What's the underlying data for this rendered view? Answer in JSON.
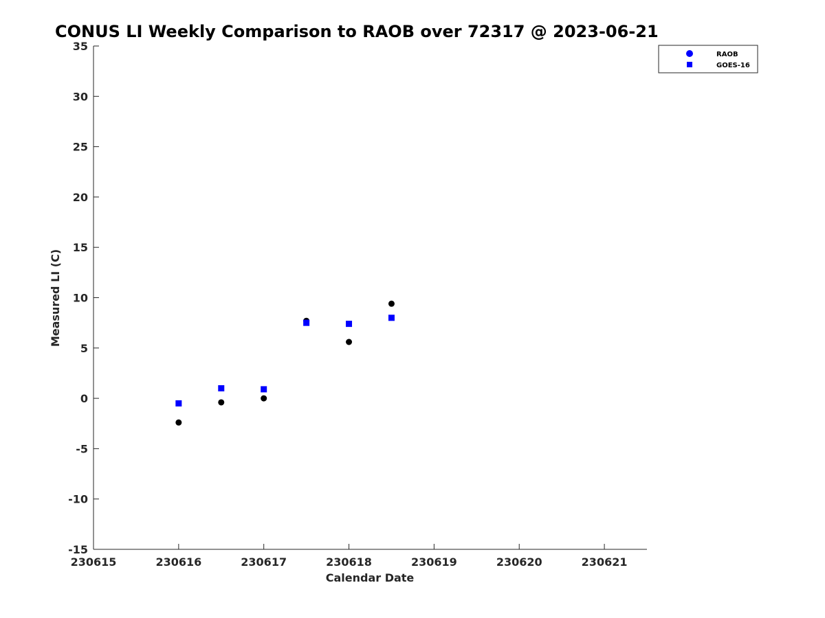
{
  "chart_data": {
    "type": "scatter",
    "title": "CONUS LI Weekly Comparison to RAOB over 72317 @ 2023-06-21",
    "xlabel": "Calendar Date",
    "ylabel": "Measured LI (C)",
    "xlim": [
      230615,
      230621.5
    ],
    "ylim": [
      -15,
      35
    ],
    "xticks": [
      230615,
      230616,
      230617,
      230618,
      230619,
      230620,
      230621
    ],
    "xtick_labels": [
      "230615",
      "230616",
      "230617",
      "230618",
      "230619",
      "230620",
      "230621"
    ],
    "yticks": [
      -15,
      -10,
      -5,
      0,
      5,
      10,
      15,
      20,
      25,
      30,
      35
    ],
    "ytick_labels": [
      "-15",
      "-10",
      "-5",
      "0",
      "5",
      "10",
      "15",
      "20",
      "25",
      "30",
      "35"
    ],
    "grid": false,
    "legend_position": "top-right",
    "series": [
      {
        "name": "RAOB",
        "marker": "circle",
        "legend_color": "#0000ff",
        "color": "#000000",
        "x": [
          230616,
          230616.5,
          230617,
          230617.5,
          230618,
          230618.5
        ],
        "y": [
          -2.4,
          -0.4,
          0.0,
          7.7,
          5.6,
          9.4
        ]
      },
      {
        "name": "GOES-16",
        "marker": "square",
        "color": "#0000ff",
        "x": [
          230616,
          230616.5,
          230617,
          230617.5,
          230618,
          230618.5
        ],
        "y": [
          -0.5,
          1.0,
          0.9,
          7.5,
          7.4,
          8.0
        ]
      }
    ]
  }
}
